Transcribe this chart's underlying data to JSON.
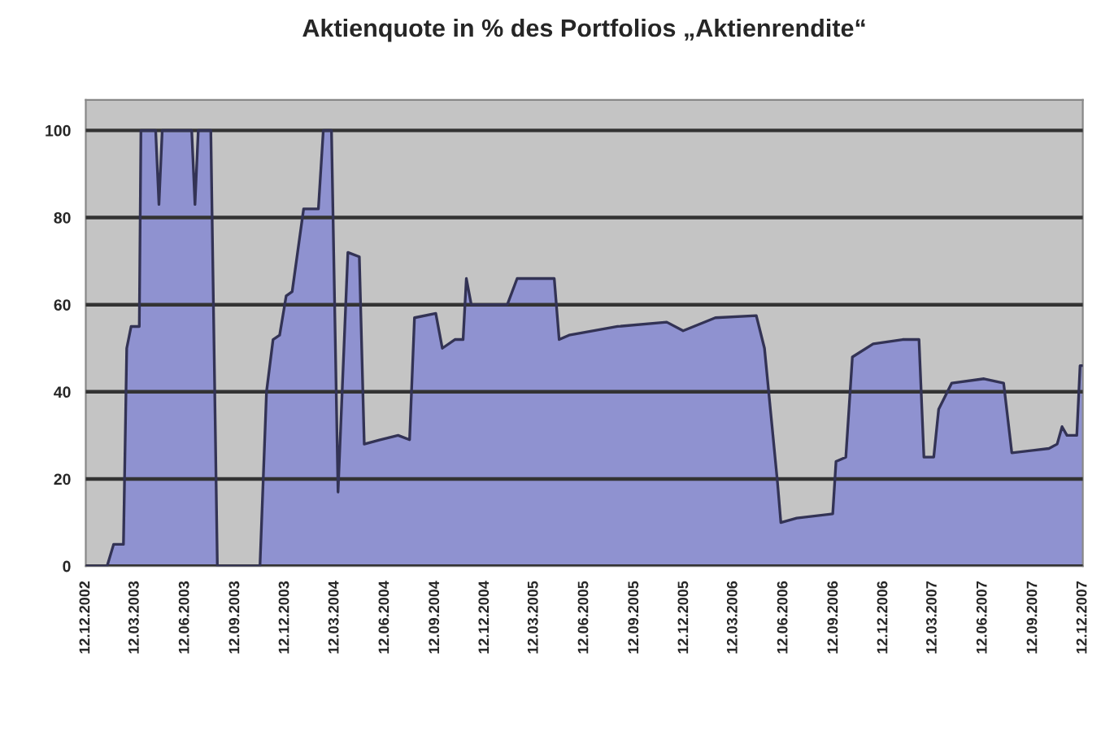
{
  "chart_data": {
    "type": "area",
    "title": "Aktienquote in % des Portfolios „Aktienrendite“",
    "x": [
      "2002-12-12",
      "2003-01-20",
      "2003-02-01",
      "2003-02-19",
      "2003-02-25",
      "2003-03-05",
      "2003-03-20",
      "2003-03-23",
      "2003-04-19",
      "2003-04-25",
      "2003-05-01",
      "2003-06-24",
      "2003-06-30",
      "2003-07-06",
      "2003-07-29",
      "2003-08-10",
      "2003-10-27",
      "2003-11-08",
      "2003-11-20",
      "2003-12-02",
      "2003-12-14",
      "2003-12-25",
      "2004-01-15",
      "2004-02-11",
      "2004-02-20",
      "2004-03-06",
      "2004-03-18",
      "2004-04-05",
      "2004-04-26",
      "2004-05-05",
      "2004-06-03",
      "2004-07-06",
      "2004-07-27",
      "2004-08-05",
      "2004-09-13",
      "2004-09-25",
      "2004-10-18",
      "2004-11-02",
      "2004-11-08",
      "2004-11-17",
      "2005-01-22",
      "2005-02-09",
      "2005-04-18",
      "2005-04-27",
      "2005-05-15",
      "2005-08-12",
      "2005-11-10",
      "2005-12-10",
      "2006-02-07",
      "2006-04-23",
      "2006-05-08",
      "2006-06-01",
      "2006-06-07",
      "2006-07-06",
      "2006-09-10",
      "2006-09-16",
      "2006-10-04",
      "2006-10-16",
      "2006-11-23",
      "2007-01-16",
      "2007-02-15",
      "2007-02-24",
      "2007-03-14",
      "2007-03-23",
      "2007-04-16",
      "2007-06-14",
      "2007-07-20",
      "2007-08-04",
      "2007-10-11",
      "2007-10-26",
      "2007-11-04",
      "2007-11-13",
      "2007-12-01",
      "2007-12-07",
      "2007-12-11"
    ],
    "series": [
      {
        "color": "#8f92d0",
        "values": [
          0,
          0,
          5,
          5,
          50,
          55,
          55,
          100,
          100,
          83,
          100,
          100,
          83,
          100,
          100,
          0,
          0,
          40,
          52,
          53,
          62,
          63,
          82,
          82,
          100,
          100,
          17,
          72,
          71,
          28,
          29,
          30,
          29,
          57,
          58,
          50,
          52,
          52,
          66,
          60,
          60,
          66,
          66,
          52,
          53,
          55,
          56,
          54,
          57,
          57.5,
          50,
          19,
          10,
          11,
          12,
          24,
          25,
          48,
          51,
          52,
          52,
          25,
          25,
          36,
          42,
          43,
          42,
          26,
          27,
          28,
          32,
          30,
          30,
          46,
          46
        ]
      }
    ],
    "xlim": [
      "2002-12-12",
      "2007-12-12"
    ],
    "xticks": [
      {
        "value": "2002-12-12",
        "label": "12.12.2002"
      },
      {
        "value": "2003-03-12",
        "label": "12.03.2003"
      },
      {
        "value": "2003-06-12",
        "label": "12.06.2003"
      },
      {
        "value": "2003-09-12",
        "label": "12.09.2003"
      },
      {
        "value": "2003-12-12",
        "label": "12.12.2003"
      },
      {
        "value": "2004-03-12",
        "label": "12.03.2004"
      },
      {
        "value": "2004-06-12",
        "label": "12.06.2004"
      },
      {
        "value": "2004-09-12",
        "label": "12.09.2004"
      },
      {
        "value": "2004-12-12",
        "label": "12.12.2004"
      },
      {
        "value": "2005-03-12",
        "label": "12.03.2005"
      },
      {
        "value": "2005-06-12",
        "label": "12.06.2005"
      },
      {
        "value": "2005-09-12",
        "label": "12.09.2005"
      },
      {
        "value": "2005-12-12",
        "label": "12.12.2005"
      },
      {
        "value": "2006-03-12",
        "label": "12.03.2006"
      },
      {
        "value": "2006-06-12",
        "label": "12.06.2006"
      },
      {
        "value": "2006-09-12",
        "label": "12.09.2006"
      },
      {
        "value": "2006-12-12",
        "label": "12.12.2006"
      },
      {
        "value": "2007-03-12",
        "label": "12.03.2007"
      },
      {
        "value": "2007-06-12",
        "label": "12.06.2007"
      },
      {
        "value": "2007-09-12",
        "label": "12.09.2007"
      },
      {
        "value": "2007-12-12",
        "label": "12.12.2007"
      }
    ],
    "ylim": [
      0,
      107
    ],
    "yticks": [
      0,
      20,
      40,
      60,
      80,
      100
    ],
    "grid": "y",
    "legend": false
  }
}
